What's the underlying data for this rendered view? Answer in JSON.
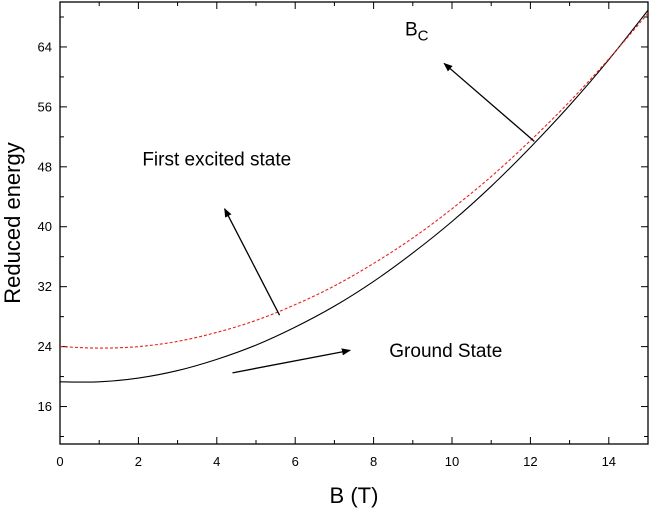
{
  "chart_data": {
    "type": "line",
    "xlabel": "B (T)",
    "ylabel": "Reduced energy",
    "xlim": [
      0,
      15
    ],
    "ylim": [
      11,
      70
    ],
    "xticks": [
      0,
      2,
      4,
      6,
      8,
      10,
      12,
      14
    ],
    "yticks": [
      16,
      24,
      32,
      40,
      48,
      56,
      64
    ],
    "grid": false,
    "series": [
      {
        "name": "Ground State",
        "color": "#000000",
        "style": "solid",
        "x": [
          0,
          1,
          2,
          3,
          4,
          5,
          6,
          7,
          8,
          9,
          10,
          11,
          12,
          13,
          14,
          15
        ],
        "y": [
          19.3,
          19.3,
          19.8,
          20.8,
          22.3,
          24.2,
          26.6,
          29.4,
          32.7,
          36.5,
          40.7,
          45.4,
          50.6,
          56.2,
          62.3,
          68.9
        ]
      },
      {
        "name": "First excited state",
        "color": "#e8231b",
        "style": "dashed",
        "x": [
          0,
          1,
          2,
          3,
          4,
          5,
          6,
          7,
          8,
          9,
          10,
          11,
          12,
          13,
          14,
          15
        ],
        "y": [
          24.0,
          23.8,
          24.0,
          24.7,
          25.9,
          27.5,
          29.6,
          32.1,
          35.1,
          38.5,
          42.4,
          46.7,
          51.5,
          56.7,
          62.4,
          68.5
        ]
      }
    ],
    "annotations": [
      {
        "text": "First excited state",
        "x": 2.1,
        "y": 48.2,
        "arrow_from": [
          5.6,
          28.2
        ],
        "arrow_to": [
          4.2,
          42.4
        ]
      },
      {
        "text": "Ground State",
        "x": 8.4,
        "y": 22.6,
        "arrow_from": [
          4.4,
          20.5
        ],
        "arrow_to": [
          7.4,
          23.5
        ]
      },
      {
        "text": "B",
        "sub": "C",
        "x": 8.8,
        "y": 65.5,
        "arrow_from": [
          12.1,
          51.4
        ],
        "arrow_to": [
          9.8,
          61.8
        ]
      }
    ]
  }
}
